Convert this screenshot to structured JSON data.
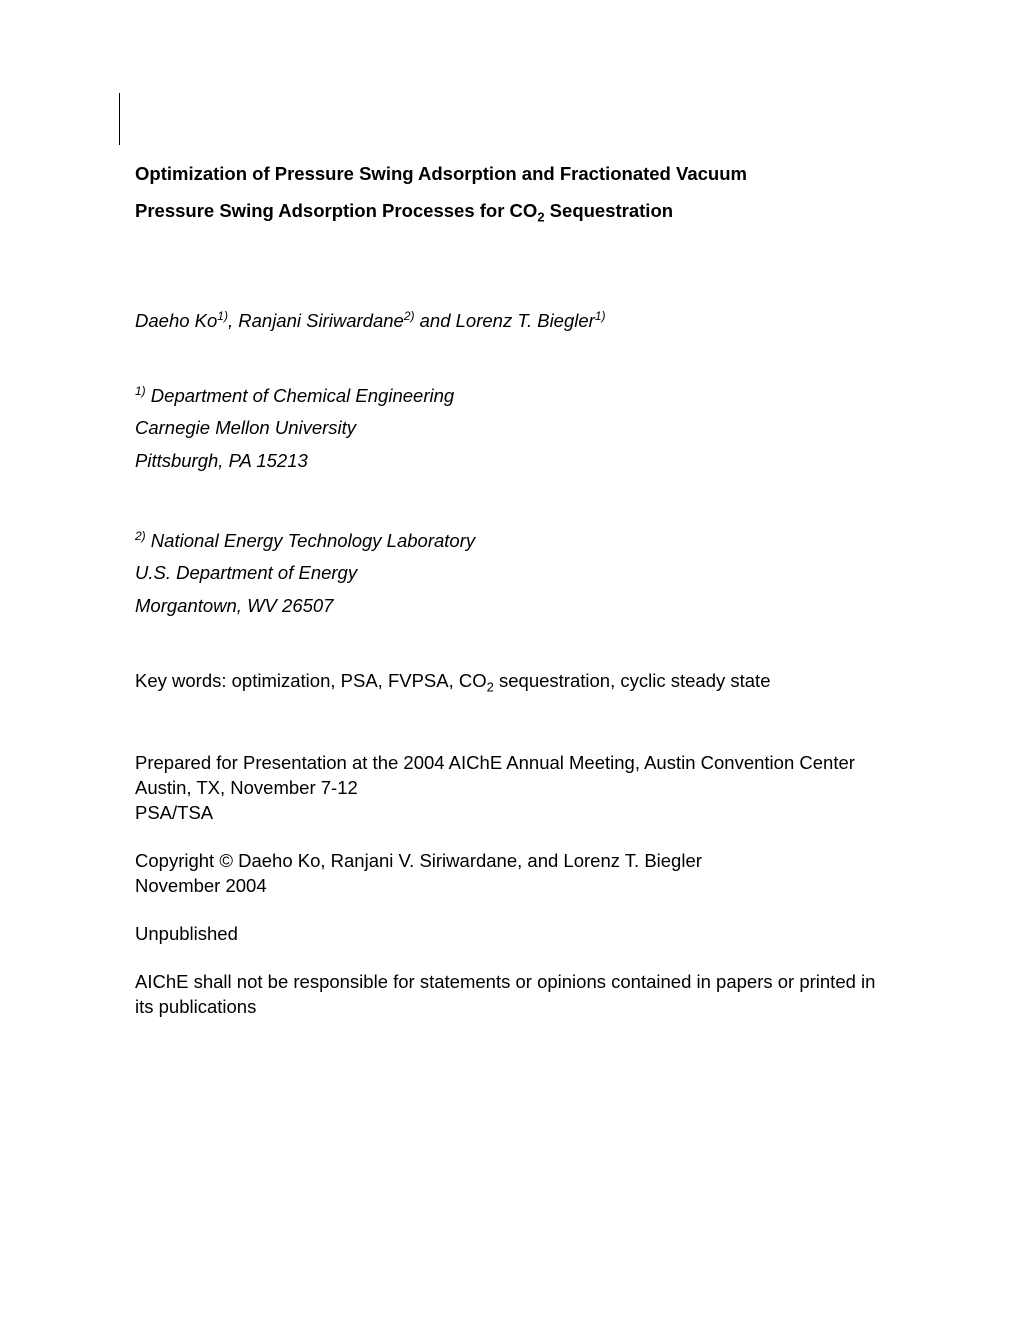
{
  "title": {
    "line1": "Optimization of Pressure Swing Adsorption and Fractionated Vacuum",
    "line2_pre": "Pressure Swing Adsorption Processes for CO",
    "line2_sub": "2",
    "line2_post": " Sequestration"
  },
  "authors": {
    "a1_name": "Daeho Ko",
    "a1_sup": "1)",
    "sep1": ", ",
    "a2_name": "Ranjani Siriwardane",
    "a2_sup": "2)",
    "sep2": " and ",
    "a3_name": "Lorenz T. Biegler",
    "a3_sup": "1)"
  },
  "affiliation1": {
    "sup": "1)",
    "line1_post": " Department of Chemical Engineering",
    "line2": "Carnegie Mellon University",
    "line3": "Pittsburgh, PA 15213"
  },
  "affiliation2": {
    "sup": "2)",
    "line1_post": " National Energy Technology Laboratory",
    "line2": "U.S. Department of Energy",
    "line3": "Morgantown, WV 26507"
  },
  "keywords": {
    "pre": "Key words: optimization, PSA, FVPSA, CO",
    "sub": "2",
    "post": " sequestration, cyclic steady state"
  },
  "presentation": {
    "line1": "Prepared for Presentation at the 2004 AIChE Annual Meeting, Austin Convention Center",
    "line2": "Austin, TX, November 7-12",
    "line3": " PSA/TSA"
  },
  "copyright": {
    "line1": "Copyright © Daeho Ko, Ranjani V. Siriwardane, and Lorenz T. Biegler",
    "line2": "November 2004"
  },
  "status": "Unpublished",
  "disclaimer": "AIChE shall not be responsible for statements or opinions contained in papers or printed in its publications",
  "colors": {
    "background": "#ffffff",
    "text": "#000000"
  },
  "typography": {
    "body_fontsize": 18.5,
    "sup_fontsize": 12,
    "sub_fontsize": 13,
    "font_family": "Arial"
  }
}
